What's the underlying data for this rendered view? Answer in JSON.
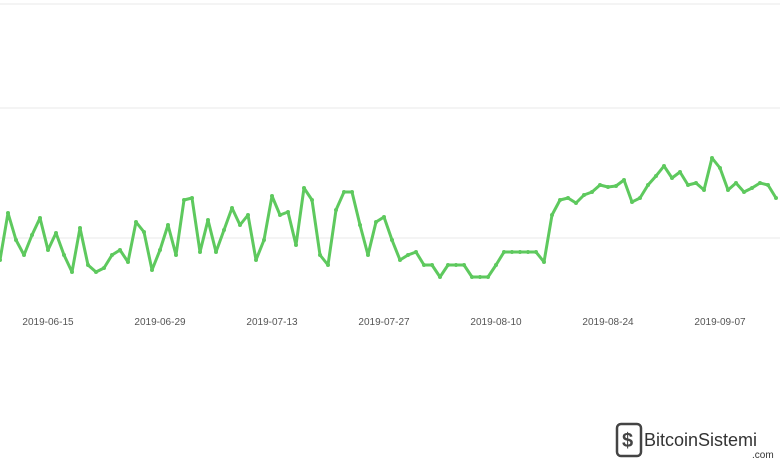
{
  "chart_data": {
    "type": "line",
    "x": [
      "2019-06-09",
      "2019-06-10",
      "2019-06-11",
      "2019-06-12",
      "2019-06-13",
      "2019-06-14",
      "2019-06-15",
      "2019-06-16",
      "2019-06-17",
      "2019-06-18",
      "2019-06-19",
      "2019-06-20",
      "2019-06-21",
      "2019-06-22",
      "2019-06-23",
      "2019-06-24",
      "2019-06-25",
      "2019-06-26",
      "2019-06-27",
      "2019-06-28",
      "2019-06-29",
      "2019-06-30",
      "2019-07-01",
      "2019-07-02",
      "2019-07-03",
      "2019-07-04",
      "2019-07-05",
      "2019-07-06",
      "2019-07-07",
      "2019-07-08",
      "2019-07-09",
      "2019-07-10",
      "2019-07-11",
      "2019-07-12",
      "2019-07-13",
      "2019-07-14",
      "2019-07-15",
      "2019-07-16",
      "2019-07-17",
      "2019-07-18",
      "2019-07-19",
      "2019-07-20",
      "2019-07-21",
      "2019-07-22",
      "2019-07-23",
      "2019-07-24",
      "2019-07-25",
      "2019-07-26",
      "2019-07-27",
      "2019-07-28",
      "2019-07-29",
      "2019-07-30",
      "2019-07-31",
      "2019-08-01",
      "2019-08-02",
      "2019-08-03",
      "2019-08-04",
      "2019-08-05",
      "2019-08-06",
      "2019-08-07",
      "2019-08-08",
      "2019-08-09",
      "2019-08-10",
      "2019-08-11",
      "2019-08-12",
      "2019-08-13",
      "2019-08-14",
      "2019-08-15",
      "2019-08-16",
      "2019-08-17",
      "2019-08-18",
      "2019-08-19",
      "2019-08-20",
      "2019-08-21",
      "2019-08-22",
      "2019-08-23",
      "2019-08-24",
      "2019-08-25",
      "2019-08-26",
      "2019-08-27",
      "2019-08-28",
      "2019-08-29",
      "2019-08-30",
      "2019-08-31",
      "2019-09-01",
      "2019-09-02",
      "2019-09-03",
      "2019-09-04",
      "2019-09-05",
      "2019-09-06",
      "2019-09-07",
      "2019-09-08",
      "2019-09-09",
      "2019-09-10",
      "2019-09-11",
      "2019-09-12",
      "2019-09-13",
      "2019-09-14"
    ],
    "xticks": [
      "2019-06-15",
      "2019-06-29",
      "2019-07-13",
      "2019-07-27",
      "2019-08-10",
      "2019-08-24",
      "2019-09-07"
    ],
    "color": "#5ec95e",
    "values": [
      40,
      87,
      60,
      45,
      65,
      82,
      50,
      67,
      45,
      28,
      72,
      35,
      28,
      32,
      45,
      50,
      38,
      78,
      68,
      30,
      50,
      75,
      45,
      100,
      102,
      48,
      80,
      48,
      70,
      92,
      75,
      85,
      40,
      60,
      104,
      85,
      88,
      55,
      112,
      100,
      45,
      35,
      90,
      108,
      108,
      75,
      45,
      78,
      83,
      60,
      40,
      45,
      48,
      35,
      35,
      23,
      35,
      35,
      35,
      23,
      23,
      23,
      35,
      48,
      48,
      48,
      48,
      48,
      38,
      85,
      100,
      102,
      97,
      105,
      108,
      115,
      113,
      114,
      120,
      98,
      102,
      115,
      124,
      134,
      122,
      128,
      115,
      117,
      110,
      142,
      132,
      110,
      117,
      108,
      112,
      117,
      115,
      102
    ],
    "ylim": [
      0,
      300
    ]
  },
  "watermark": {
    "brand": "BitcoinSistemi",
    "suffix": ".com"
  }
}
